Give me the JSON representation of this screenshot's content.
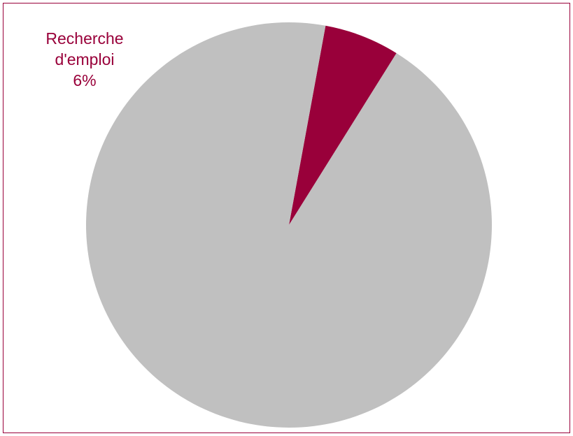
{
  "chart_data": {
    "type": "pie",
    "title": "",
    "slices": [
      {
        "label": "Recherche\nd'emploi",
        "value": 6,
        "value_label": "6%",
        "color": "#99003A",
        "show_label": true
      },
      {
        "label": "",
        "value": 94,
        "value_label": "",
        "color": "#C0C0C0",
        "show_label": false
      }
    ],
    "start_angle_deg": -58,
    "label_color": "#99003A",
    "frame_color": "#99003A"
  }
}
